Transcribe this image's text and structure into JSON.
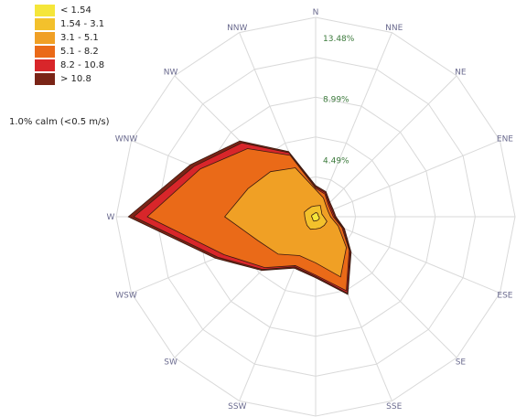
{
  "chart_data": {
    "type": "wind-rose",
    "directions": [
      "N",
      "NNE",
      "NE",
      "ENE",
      "E",
      "ESE",
      "SE",
      "SSE",
      "S",
      "SSW",
      "SW",
      "WSW",
      "W",
      "WNW",
      "NW",
      "NNW"
    ],
    "rings": [
      "4.49%",
      "8.99%",
      "13.48%"
    ],
    "ring_values": [
      4.49,
      8.99,
      13.48
    ],
    "legend": [
      {
        "label": "< 1.54",
        "color": "#f5e63a"
      },
      {
        "label": "1.54 - 3.1",
        "color": "#f3c12c"
      },
      {
        "label": "3.1 - 5.1",
        "color": "#f0a025"
      },
      {
        "label": "5.1 - 8.2",
        "color": "#ea6a18"
      },
      {
        "label": "8.2 - 10.8",
        "color": "#d8262a"
      },
      {
        "label": "> 10.8",
        "color": "#7a2416"
      }
    ],
    "calm_text": "1.0% calm (<0.5 m/s)",
    "series": [
      {
        "name": "> 10.8",
        "color": "#7a2416",
        "values": [
          2.3,
          2.0,
          1.5,
          1.4,
          1.5,
          2.3,
          3.7,
          6.2,
          4.5,
          4.1,
          5.6,
          8.0,
          13.8,
          10.0,
          7.9,
          5.2
        ]
      },
      {
        "name": "8.2 - 10.8",
        "color": "#d8262a",
        "values": [
          2.2,
          1.9,
          1.4,
          1.3,
          1.4,
          2.2,
          3.6,
          6.1,
          4.4,
          4.0,
          5.5,
          7.8,
          13.4,
          9.7,
          7.7,
          5.1
        ]
      },
      {
        "name": "5.1 - 8.2",
        "color": "#ea6a18",
        "values": [
          2.1,
          1.8,
          1.3,
          1.2,
          1.3,
          2.1,
          3.5,
          5.9,
          4.3,
          3.9,
          5.3,
          7.3,
          12.4,
          9.2,
          7.1,
          4.9
        ]
      },
      {
        "name": "3.1 - 5.1",
        "color": "#f0a025",
        "values": [
          2.0,
          1.5,
          1.1,
          1.0,
          1.1,
          1.8,
          3.2,
          4.8,
          3.4,
          3.1,
          3.9,
          4.6,
          6.7,
          5.4,
          4.7,
          3.9
        ]
      },
      {
        "name": "1.54 - 3.1",
        "color": "#f3c12c",
        "values": [
          0.8,
          0.9,
          0.6,
          0.5,
          0.6,
          0.9,
          0.9,
          0.9,
          0.9,
          1.0,
          0.9,
          0.8,
          0.8,
          0.9,
          0.8,
          0.8
        ]
      },
      {
        "name": "< 1.54",
        "color": "#f5e63a",
        "values": [
          0.3,
          0.3,
          0.25,
          0.2,
          0.25,
          0.3,
          0.3,
          0.3,
          0.3,
          0.35,
          0.3,
          0.25,
          0.3,
          0.3,
          0.25,
          0.25
        ]
      }
    ],
    "grid": true,
    "legend_position": "top-left"
  }
}
